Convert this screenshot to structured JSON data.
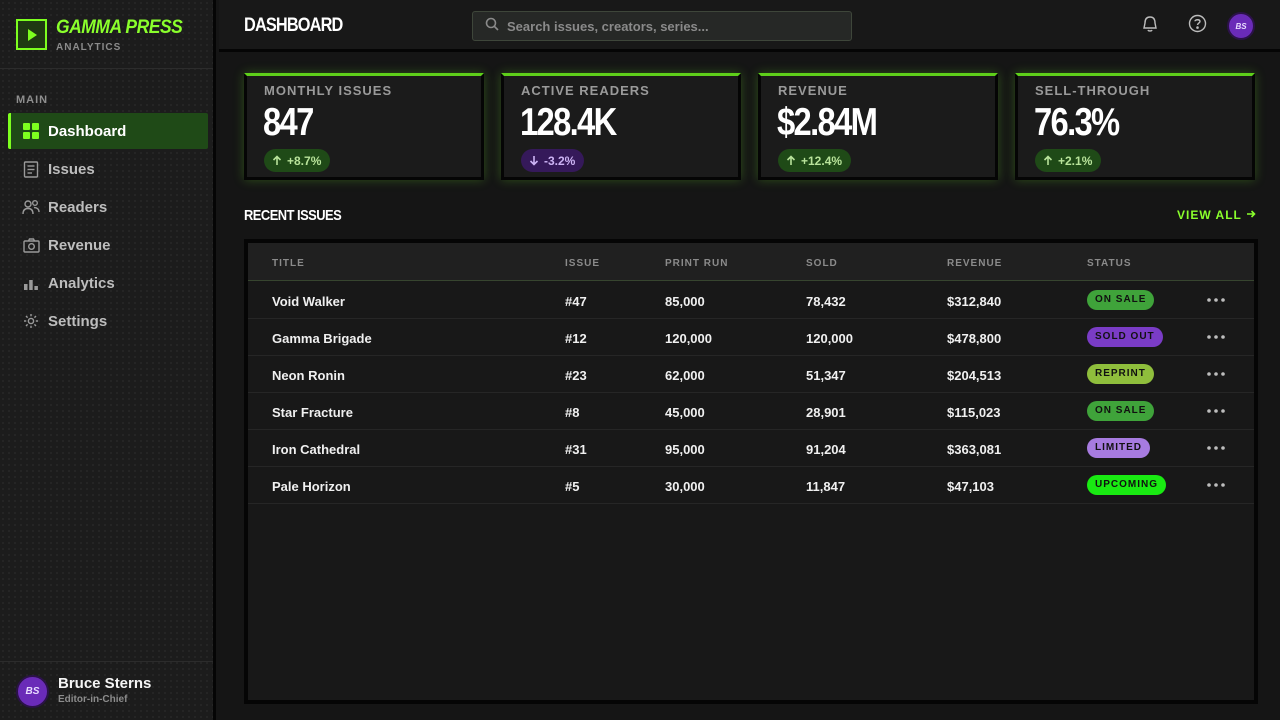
{
  "brand": {
    "title": "GAMMA PRESS",
    "subtitle": "ANALYTICS",
    "logo_icon": "play-square-icon",
    "accent": "#7dff1f"
  },
  "nav": {
    "section_label": "MAIN",
    "items": [
      {
        "label": "Dashboard",
        "icon": "grid-icon",
        "active": true
      },
      {
        "label": "Issues",
        "icon": "document-icon",
        "active": false
      },
      {
        "label": "Readers",
        "icon": "users-icon",
        "active": false
      },
      {
        "label": "Revenue",
        "icon": "camera-icon",
        "active": false
      },
      {
        "label": "Analytics",
        "icon": "bar-chart-icon",
        "active": false
      },
      {
        "label": "Settings",
        "icon": "gear-icon",
        "active": false
      }
    ]
  },
  "user": {
    "initials": "BS",
    "name": "Bruce Sterns",
    "role": "Editor-in-Chief"
  },
  "header": {
    "title": "DASHBOARD",
    "search_placeholder": "Search issues, creators, series...",
    "search_value": "",
    "avatar_initials": "BS"
  },
  "kpis": [
    {
      "label": "MONTHLY ISSUES",
      "value": "847",
      "delta": "+8.7%",
      "direction": "up"
    },
    {
      "label": "ACTIVE READERS",
      "value": "128.4K",
      "delta": "-3.2%",
      "direction": "down"
    },
    {
      "label": "REVENUE",
      "value": "$2.84M",
      "delta": "+12.4%",
      "direction": "up"
    },
    {
      "label": "SELL-THROUGH",
      "value": "76.3%",
      "delta": "+2.1%",
      "direction": "up"
    }
  ],
  "recent": {
    "title": "RECENT ISSUES",
    "view_all": "VIEW ALL",
    "columns": [
      "TITLE",
      "ISSUE",
      "PRINT RUN",
      "SOLD",
      "REVENUE",
      "STATUS"
    ],
    "rows": [
      {
        "title": "Void Walker",
        "issue": "#47",
        "print_run": "85,000",
        "sold": "78,432",
        "revenue": "$312,840",
        "status": "ON SALE",
        "status_color": "#3fa33a"
      },
      {
        "title": "Gamma Brigade",
        "issue": "#12",
        "print_run": "120,000",
        "sold": "120,000",
        "revenue": "$478,800",
        "status": "SOLD OUT",
        "status_color": "#7a3cc6"
      },
      {
        "title": "Neon Ronin",
        "issue": "#23",
        "print_run": "62,000",
        "sold": "51,347",
        "revenue": "$204,513",
        "status": "REPRINT",
        "status_color": "#8fbe3c"
      },
      {
        "title": "Star Fracture",
        "issue": "#8",
        "print_run": "45,000",
        "sold": "28,901",
        "revenue": "$115,023",
        "status": "ON SALE",
        "status_color": "#3fa33a"
      },
      {
        "title": "Iron Cathedral",
        "issue": "#31",
        "print_run": "95,000",
        "sold": "91,204",
        "revenue": "$363,081",
        "status": "LIMITED",
        "status_color": "#a77be0"
      },
      {
        "title": "Pale Horizon",
        "issue": "#5",
        "print_run": "30,000",
        "sold": "11,847",
        "revenue": "$47,103",
        "status": "UPCOMING",
        "status_color": "#19ea12"
      }
    ]
  }
}
